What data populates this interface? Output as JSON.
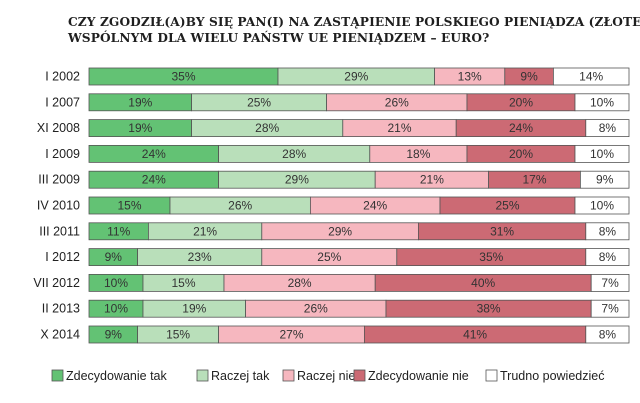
{
  "title": {
    "line1": "CZY ZGODZIŁ(A)BY SIĘ PAN(I) NA ZASTĄPIENIE POLSKIEGO PIENIĄDZA (ZŁOTEGO)",
    "line2": "WSPÓLNYM DLA WIELU PAŃSTW UE PIENIĄDZEM – EURO?"
  },
  "colors": {
    "Zdecydowanie tak": "#63c274",
    "Raczej tak": "#b9dfba",
    "Raczej nie": "#f6b7bf",
    "Zdecydowanie nie": "#cc6a74",
    "Trudno powiedzieć": "#ffffff",
    "border": "#555555"
  },
  "chart_data": {
    "type": "bar",
    "orientation": "horizontal",
    "stacked": true,
    "normalized_percent": true,
    "categories": [
      "I 2002",
      "I 2007",
      "XI 2008",
      "I 2009",
      "III 2009",
      "IV 2010",
      "III 2011",
      "I 2012",
      "VII 2012",
      "II 2013",
      "X 2014"
    ],
    "series": [
      {
        "name": "Zdecydowanie tak",
        "values": [
          35,
          19,
          19,
          24,
          24,
          15,
          11,
          9,
          10,
          10,
          9
        ]
      },
      {
        "name": "Raczej tak",
        "values": [
          29,
          25,
          28,
          28,
          29,
          26,
          21,
          23,
          15,
          19,
          15
        ]
      },
      {
        "name": "Raczej nie",
        "values": [
          13,
          26,
          21,
          18,
          21,
          24,
          29,
          25,
          28,
          26,
          27
        ]
      },
      {
        "name": "Zdecydowanie nie",
        "values": [
          9,
          20,
          24,
          20,
          17,
          25,
          31,
          35,
          40,
          38,
          41
        ]
      },
      {
        "name": "Trudno powiedzieć",
        "values": [
          14,
          10,
          8,
          10,
          9,
          10,
          8,
          8,
          7,
          7,
          8
        ]
      }
    ],
    "value_suffix": "%",
    "legend_position": "bottom",
    "grid": false
  }
}
